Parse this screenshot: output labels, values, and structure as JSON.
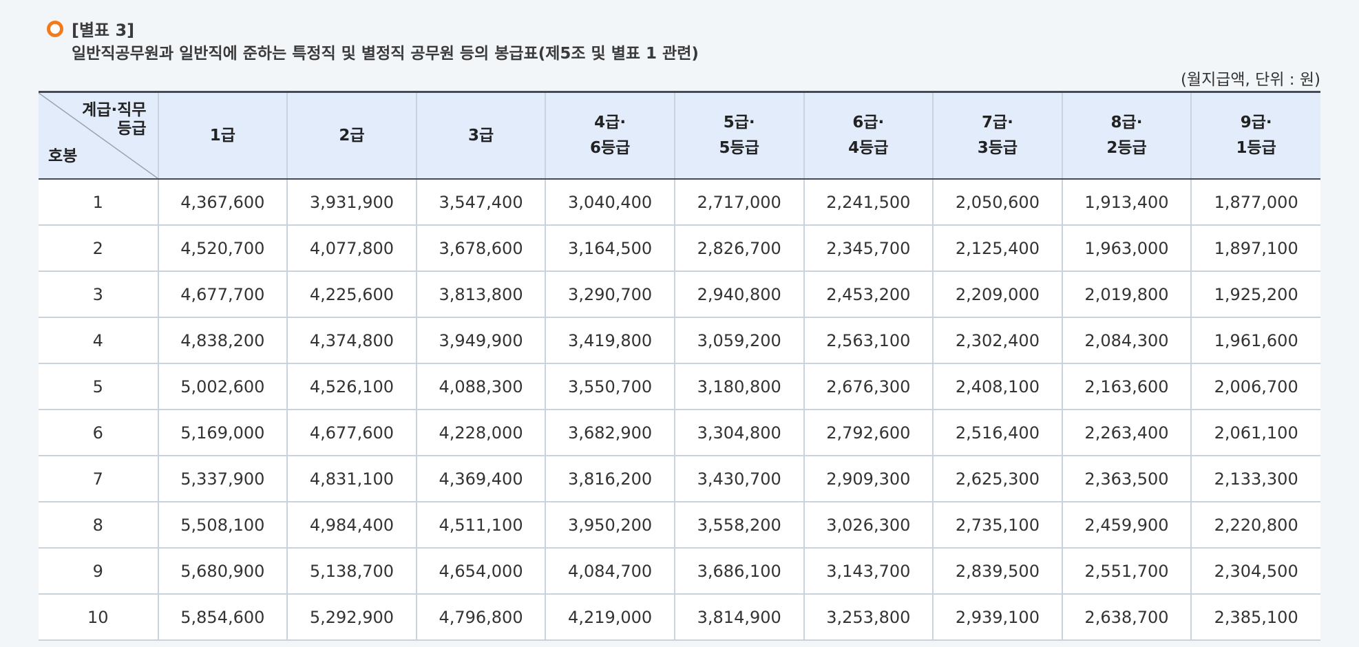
{
  "heading": {
    "label": "[별표 3]",
    "title": "일반직공무원과 일반직에 준하는 특정직 및 별정직 공무원 등의 봉급표(제5조 및 별표 1 관련)",
    "icon": "orange-ring-bullet",
    "accent_color": "#f07c1e"
  },
  "unit_note": "(월지급액, 단위 : 원)",
  "table": {
    "corner": {
      "top_line1": "계급·직무",
      "top_line2": "등급",
      "bottom": "호봉"
    },
    "columns": [
      {
        "line1": "1급",
        "line2": ""
      },
      {
        "line1": "2급",
        "line2": ""
      },
      {
        "line1": "3급",
        "line2": ""
      },
      {
        "line1": "4급·",
        "line2": "6등급"
      },
      {
        "line1": "5급·",
        "line2": "5등급"
      },
      {
        "line1": "6급·",
        "line2": "4등급"
      },
      {
        "line1": "7급·",
        "line2": "3등급"
      },
      {
        "line1": "8급·",
        "line2": "2등급"
      },
      {
        "line1": "9급·",
        "line2": "1등급"
      }
    ],
    "rows": [
      {
        "step": "1",
        "values": [
          "4,367,600",
          "3,931,900",
          "3,547,400",
          "3,040,400",
          "2,717,000",
          "2,241,500",
          "2,050,600",
          "1,913,400",
          "1,877,000"
        ]
      },
      {
        "step": "2",
        "values": [
          "4,520,700",
          "4,077,800",
          "3,678,600",
          "3,164,500",
          "2,826,700",
          "2,345,700",
          "2,125,400",
          "1,963,000",
          "1,897,100"
        ]
      },
      {
        "step": "3",
        "values": [
          "4,677,700",
          "4,225,600",
          "3,813,800",
          "3,290,700",
          "2,940,800",
          "2,453,200",
          "2,209,000",
          "2,019,800",
          "1,925,200"
        ]
      },
      {
        "step": "4",
        "values": [
          "4,838,200",
          "4,374,800",
          "3,949,900",
          "3,419,800",
          "3,059,200",
          "2,563,100",
          "2,302,400",
          "2,084,300",
          "1,961,600"
        ]
      },
      {
        "step": "5",
        "values": [
          "5,002,600",
          "4,526,100",
          "4,088,300",
          "3,550,700",
          "3,180,800",
          "2,676,300",
          "2,408,100",
          "2,163,600",
          "2,006,700"
        ]
      },
      {
        "step": "6",
        "values": [
          "5,169,000",
          "4,677,600",
          "4,228,000",
          "3,682,900",
          "3,304,800",
          "2,792,600",
          "2,516,400",
          "2,263,400",
          "2,061,100"
        ]
      },
      {
        "step": "7",
        "values": [
          "5,337,900",
          "4,831,100",
          "4,369,400",
          "3,816,200",
          "3,430,700",
          "2,909,300",
          "2,625,300",
          "2,363,500",
          "2,133,300"
        ]
      },
      {
        "step": "8",
        "values": [
          "5,508,100",
          "4,984,400",
          "4,511,100",
          "3,950,200",
          "3,558,200",
          "3,026,300",
          "2,735,100",
          "2,459,900",
          "2,220,800"
        ]
      },
      {
        "step": "9",
        "values": [
          "5,680,900",
          "5,138,700",
          "4,654,000",
          "4,084,700",
          "3,686,100",
          "3,143,700",
          "2,839,500",
          "2,551,700",
          "2,304,500"
        ]
      },
      {
        "step": "10",
        "values": [
          "5,854,600",
          "5,292,900",
          "4,796,800",
          "4,219,000",
          "3,814,900",
          "3,253,800",
          "2,939,100",
          "2,638,700",
          "2,385,100"
        ]
      }
    ]
  }
}
